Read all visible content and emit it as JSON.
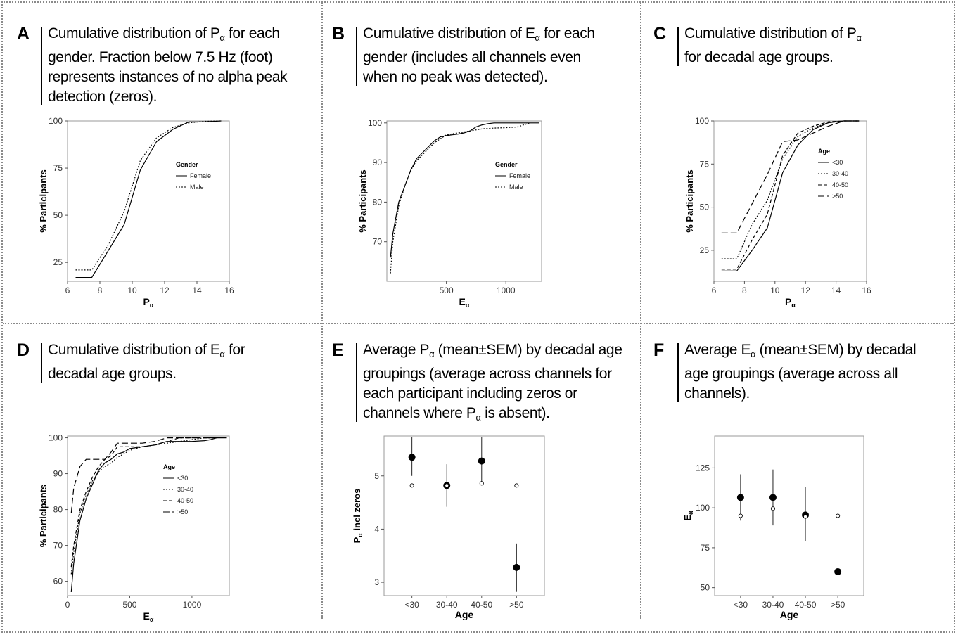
{
  "panels": [
    {
      "letter": "A",
      "pre": "Cumulative distribution of P",
      "sub": "α",
      "post": " for each gender.  Fraction below 7.5 Hz (foot) represents instances of no alpha peak detection (zeros)."
    },
    {
      "letter": "B",
      "pre": "Cumulative distribution of E",
      "sub": "α",
      "post": " for each gender (includes all channels even when no peak was detected)."
    },
    {
      "letter": "C",
      "pre": "Cumulative distribution of P",
      "sub": "α",
      "post": " for decadal age groups."
    },
    {
      "letter": "D",
      "pre": "Cumulative distribution of E",
      "sub": "α",
      "post": " for decadal age groups."
    },
    {
      "letter": "E",
      "pre": "Average P",
      "sub": "α",
      "post": " (mean±SEM) by decadal age groupings (average across channels for each participant including zeros or channels where P",
      "sub2": "α",
      "post2": " is absent)."
    },
    {
      "letter": "F",
      "pre": "Average E",
      "sub": "α",
      "post": " (mean±SEM) by decadal age groupings (average across all channels)."
    }
  ],
  "chart_data": [
    {
      "id": "A",
      "type": "line",
      "xlabel": "P",
      "xlabel_sub": "α",
      "ylabel": "% Participants",
      "xlim": [
        6,
        16
      ],
      "ylim": [
        15,
        100
      ],
      "xticks": [
        6,
        8,
        10,
        12,
        14,
        16
      ],
      "yticks": [
        25,
        50,
        75,
        100
      ],
      "legend_title": "Gender",
      "legend_position": "top-right",
      "series": [
        {
          "name": "Female",
          "dash": "solid",
          "x": [
            6.5,
            7.5,
            8.5,
            9.5,
            10.5,
            11.5,
            12.5,
            13.5,
            14.5,
            15.5
          ],
          "y": [
            17,
            17,
            31,
            45,
            74,
            89,
            95.5,
            99.5,
            99.5,
            100
          ]
        },
        {
          "name": "Male",
          "dash": "dotted",
          "x": [
            6.5,
            7.5,
            8.5,
            9.5,
            10.5,
            11.5,
            12.5,
            13.5,
            14.5,
            15.5
          ],
          "y": [
            21,
            21,
            34,
            52,
            79,
            91,
            96.5,
            99,
            99.8,
            100
          ]
        }
      ]
    },
    {
      "id": "B",
      "type": "line",
      "xlabel": "E",
      "xlabel_sub": "α",
      "ylabel": "% Participants",
      "xlim": [
        0,
        1300
      ],
      "ylim": [
        60,
        100.5
      ],
      "xticks": [
        500,
        1000
      ],
      "yticks": [
        70,
        80,
        90,
        100
      ],
      "legend_title": "Gender",
      "legend_position": "right",
      "series": [
        {
          "name": "Female",
          "dash": "solid",
          "x": [
            30,
            50,
            100,
            150,
            200,
            250,
            300,
            350,
            400,
            450,
            500,
            550,
            600,
            650,
            700,
            750,
            800,
            850,
            900,
            950,
            1000,
            1100,
            1200,
            1280
          ],
          "y": [
            66,
            72,
            80,
            84,
            88,
            91,
            92.5,
            94,
            95.5,
            96.5,
            96.8,
            97,
            97.2,
            97.5,
            98,
            99,
            99.5,
            99.8,
            100,
            100,
            100,
            100,
            100,
            100
          ]
        },
        {
          "name": "Male",
          "dash": "dotted",
          "x": [
            30,
            50,
            100,
            150,
            200,
            250,
            300,
            350,
            400,
            450,
            500,
            600,
            700,
            800,
            900,
            1000,
            1100,
            1150,
            1200
          ],
          "y": [
            62,
            70,
            79,
            84,
            88,
            90.5,
            92,
            93.5,
            95,
            96,
            97,
            97.5,
            98,
            98.5,
            98.7,
            98.8,
            99,
            99.5,
            100
          ]
        }
      ]
    },
    {
      "id": "C",
      "type": "line",
      "xlabel": "P",
      "xlabel_sub": "α",
      "ylabel": "% Participants",
      "xlim": [
        6,
        16
      ],
      "ylim": [
        7,
        100
      ],
      "xticks": [
        6,
        8,
        10,
        12,
        14,
        16
      ],
      "yticks": [
        25,
        50,
        75,
        100
      ],
      "legend_title": "Age",
      "legend_position": "right",
      "series": [
        {
          "name": "<30",
          "dash": "solid",
          "x": [
            6.5,
            7.5,
            8.5,
            9.5,
            10.5,
            11.5,
            12.5,
            13.5,
            14.5,
            15.5
          ],
          "y": [
            13,
            13,
            25,
            38,
            70,
            86,
            95,
            99,
            100,
            100
          ]
        },
        {
          "name": "30-40",
          "dash": "dotted",
          "x": [
            6.5,
            7.5,
            8.5,
            9.5,
            10.5,
            11.5,
            12.5,
            13.5,
            14.5,
            15.5
          ],
          "y": [
            20,
            20,
            40,
            54,
            78,
            91,
            96,
            99,
            100,
            100
          ]
        },
        {
          "name": "40-50",
          "dash": "dashed",
          "x": [
            6.5,
            7.5,
            8.5,
            9.5,
            10.5,
            11.5,
            12.5,
            13.5,
            14.5,
            15.5
          ],
          "y": [
            14,
            14,
            31,
            46,
            80,
            93,
            97,
            99.5,
            100,
            100
          ]
        },
        {
          "name": ">50",
          "dash": "longdash",
          "x": [
            6.5,
            7.5,
            8.5,
            9.5,
            10.5,
            11.5,
            12.5,
            13.5,
            14.5,
            15.5
          ],
          "y": [
            35,
            35,
            52,
            69,
            88,
            89,
            93,
            97,
            100,
            100
          ]
        }
      ]
    },
    {
      "id": "D",
      "type": "line",
      "xlabel": "E",
      "xlabel_sub": "α",
      "ylabel": "% Participants",
      "xlim": [
        0,
        1300
      ],
      "ylim": [
        56,
        100.5
      ],
      "xticks": [
        0,
        500,
        1000
      ],
      "yticks": [
        60,
        70,
        80,
        90,
        100
      ],
      "legend_title": "Age",
      "legend_position": "right",
      "series": [
        {
          "name": "<30",
          "dash": "solid",
          "x": [
            30,
            50,
            100,
            150,
            200,
            250,
            300,
            350,
            400,
            450,
            500,
            600,
            700,
            800,
            900,
            1000,
            1100,
            1150,
            1200,
            1280
          ],
          "y": [
            57,
            65,
            77,
            83,
            87,
            91,
            93,
            94,
            95.5,
            96,
            97,
            97.5,
            98,
            99,
            99,
            99,
            99.2,
            99.5,
            100,
            100
          ]
        },
        {
          "name": "30-40",
          "dash": "dotted",
          "x": [
            30,
            50,
            100,
            150,
            200,
            250,
            300,
            350,
            400,
            450,
            500,
            600,
            700,
            800,
            900,
            1000,
            1100,
            1200
          ],
          "y": [
            62,
            68,
            79,
            84,
            88,
            90.5,
            92,
            93,
            94.5,
            95.5,
            96.5,
            97.5,
            98,
            98.5,
            99,
            99.5,
            100,
            100
          ]
        },
        {
          "name": "40-50",
          "dash": "dashed",
          "x": [
            30,
            50,
            100,
            150,
            200,
            250,
            300,
            350,
            400,
            450,
            500,
            600,
            700,
            800,
            900,
            1000,
            1100,
            1200
          ],
          "y": [
            64,
            70,
            80,
            85,
            89,
            92,
            94,
            95,
            97.5,
            97.5,
            97.5,
            97.5,
            98,
            99,
            100,
            100,
            100,
            100
          ]
        },
        {
          "name": ">50",
          "dash": "longdash",
          "x": [
            30,
            50,
            100,
            150,
            200,
            250,
            300,
            350,
            400,
            500,
            600,
            700,
            800,
            900,
            1000,
            1100,
            1200
          ],
          "y": [
            79,
            86,
            92,
            94,
            94,
            94,
            94,
            96,
            98.5,
            98.5,
            98.5,
            99,
            100,
            100,
            100,
            100,
            100
          ]
        }
      ]
    },
    {
      "id": "E",
      "type": "scatter",
      "xlabel": "Age",
      "ylabel_pre": "P",
      "ylabel_sub": "α",
      "ylabel_post": " incl zeros",
      "categories": [
        "<30",
        "30-40",
        "40-50",
        ">50"
      ],
      "ylim": [
        2.75,
        5.75
      ],
      "yticks": [
        3,
        4,
        5
      ],
      "means": [
        5.35,
        4.82,
        5.28,
        3.28
      ],
      "sem_low": [
        5.0,
        4.42,
        4.88,
        2.82
      ],
      "sem_high": [
        5.73,
        5.22,
        5.73,
        3.73
      ],
      "open_points": [
        4.82,
        4.82,
        4.86,
        4.82
      ]
    },
    {
      "id": "F",
      "type": "scatter",
      "xlabel": "Age",
      "ylabel_pre": "E",
      "ylabel_sub": "α",
      "ylabel_post": "",
      "categories": [
        "<30",
        "30-40",
        "40-50",
        ">50"
      ],
      "ylim": [
        45,
        145
      ],
      "yticks": [
        50,
        75,
        100,
        125
      ],
      "means": [
        106.5,
        106.5,
        95.5,
        60
      ],
      "sem_low": [
        92,
        89,
        79,
        60
      ],
      "sem_high": [
        121,
        124,
        113,
        60
      ],
      "open_points": [
        95,
        99.5,
        94.5,
        95
      ]
    }
  ]
}
